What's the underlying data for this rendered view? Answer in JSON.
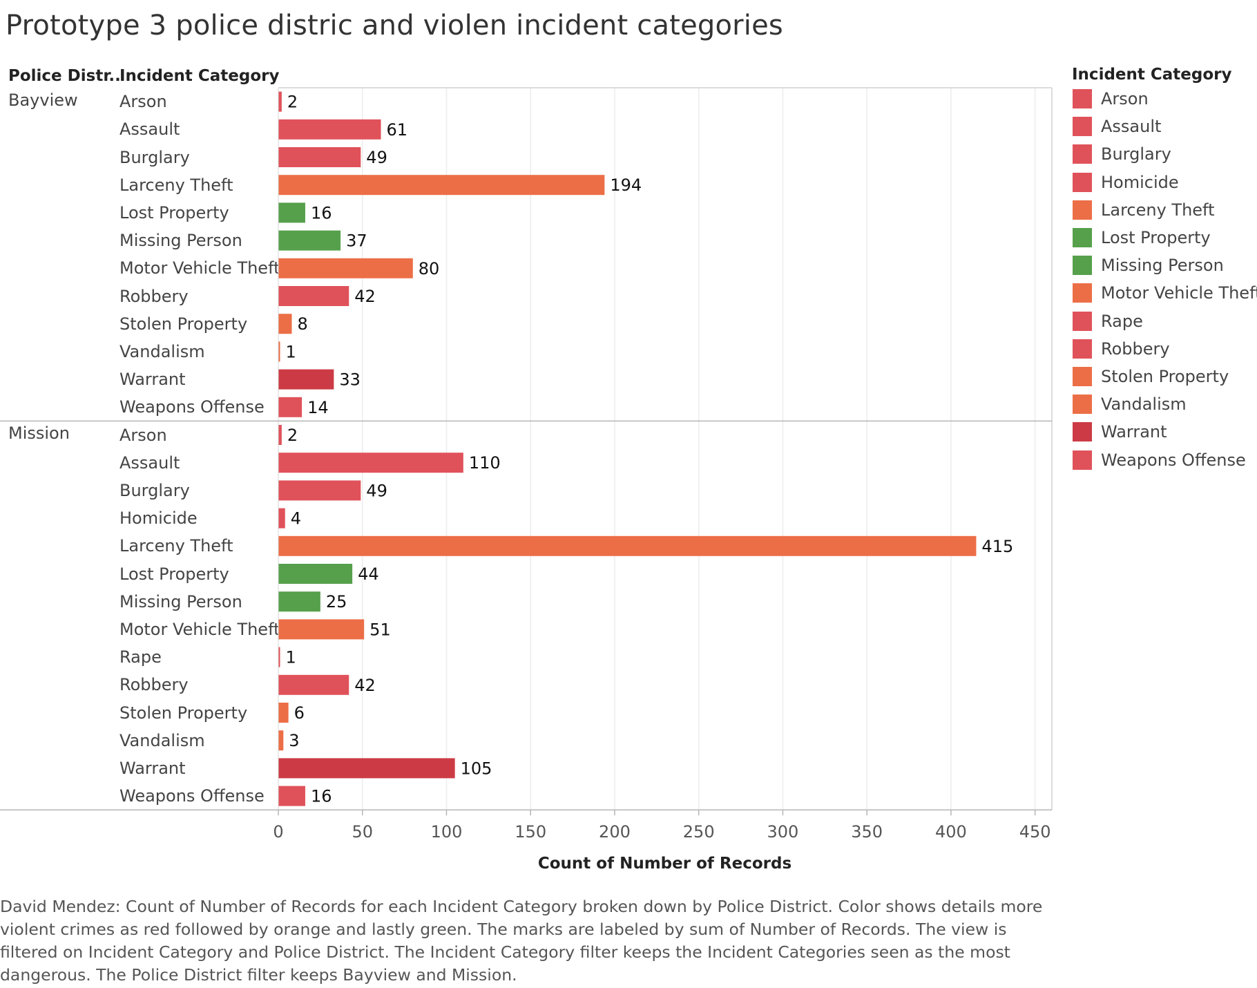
{
  "title": "Prototype 3 police distric and violen incident categories",
  "headers": {
    "district": "Police Distr..",
    "category": "Incident Category"
  },
  "legend": {
    "title": "Incident Category",
    "items": [
      {
        "label": "Arson",
        "color": "#e0525a"
      },
      {
        "label": "Assault",
        "color": "#e0525a"
      },
      {
        "label": "Burglary",
        "color": "#e0525a"
      },
      {
        "label": "Homicide",
        "color": "#e0525a"
      },
      {
        "label": "Larceny Theft",
        "color": "#ec6e47"
      },
      {
        "label": "Lost Property",
        "color": "#56a04c"
      },
      {
        "label": "Missing Person",
        "color": "#56a04c"
      },
      {
        "label": "Motor Vehicle Theft",
        "color": "#ec6e47"
      },
      {
        "label": "Rape",
        "color": "#e0525a"
      },
      {
        "label": "Robbery",
        "color": "#e0525a"
      },
      {
        "label": "Stolen Property",
        "color": "#ec6e47"
      },
      {
        "label": "Vandalism",
        "color": "#ec6e47"
      },
      {
        "label": "Warrant",
        "color": "#cc3b45"
      },
      {
        "label": "Weapons Offense",
        "color": "#e0525a"
      }
    ]
  },
  "x_axis": {
    "label": "Count of Number of Records",
    "ticks": [
      0,
      50,
      100,
      150,
      200,
      250,
      300,
      350,
      400,
      450
    ]
  },
  "caption": "David Mendez: Count of Number of Records for each Incident Category broken down by Police District.  Color shows details more violent crimes as red followed by orange and lastly green.   The marks are labeled by sum of Number of Records. The view is filtered on Incident Category and Police District. The Incident Category filter keeps the Incident Categories seen as the most dangerous.  The Police District filter keeps Bayview and Mission.",
  "chart_data": {
    "type": "bar",
    "orientation": "horizontal",
    "title": "Prototype 3 police distric and violen incident categories",
    "xlabel": "Count of Number of Records",
    "xlim": [
      0,
      460
    ],
    "grid": true,
    "legend_position": "right",
    "groups": [
      {
        "name": "Bayview",
        "bars": [
          {
            "category": "Arson",
            "value": 2
          },
          {
            "category": "Assault",
            "value": 61
          },
          {
            "category": "Burglary",
            "value": 49
          },
          {
            "category": "Larceny Theft",
            "value": 194
          },
          {
            "category": "Lost Property",
            "value": 16
          },
          {
            "category": "Missing Person",
            "value": 37
          },
          {
            "category": "Motor Vehicle Theft",
            "value": 80
          },
          {
            "category": "Robbery",
            "value": 42
          },
          {
            "category": "Stolen Property",
            "value": 8
          },
          {
            "category": "Vandalism",
            "value": 1
          },
          {
            "category": "Warrant",
            "value": 33
          },
          {
            "category": "Weapons Offense",
            "value": 14
          }
        ]
      },
      {
        "name": "Mission",
        "bars": [
          {
            "category": "Arson",
            "value": 2
          },
          {
            "category": "Assault",
            "value": 110
          },
          {
            "category": "Burglary",
            "value": 49
          },
          {
            "category": "Homicide",
            "value": 4
          },
          {
            "category": "Larceny Theft",
            "value": 415
          },
          {
            "category": "Lost Property",
            "value": 44
          },
          {
            "category": "Missing Person",
            "value": 25
          },
          {
            "category": "Motor Vehicle Theft",
            "value": 51
          },
          {
            "category": "Rape",
            "value": 1
          },
          {
            "category": "Robbery",
            "value": 42
          },
          {
            "category": "Stolen Property",
            "value": 6
          },
          {
            "category": "Vandalism",
            "value": 3
          },
          {
            "category": "Warrant",
            "value": 105
          },
          {
            "category": "Weapons Offense",
            "value": 16
          }
        ]
      }
    ]
  }
}
